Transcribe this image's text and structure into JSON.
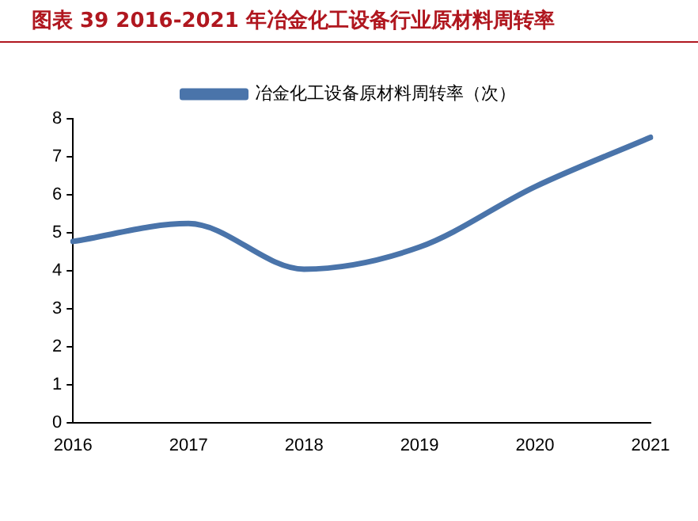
{
  "chart_data": {
    "type": "line",
    "title": "图表 39 2016-2021 年冶金化工设备行业原材料周转率",
    "categories": [
      "2016",
      "2017",
      "2018",
      "2019",
      "2020",
      "2021"
    ],
    "series": [
      {
        "name": "冶金化工设备原材料周转率（次）",
        "color": "#4a74aa",
        "values": [
          4.77,
          5.24,
          4.04,
          4.62,
          6.21,
          7.51
        ]
      }
    ],
    "ylim": [
      0,
      8
    ],
    "yticks": [
      0,
      1,
      2,
      3,
      4,
      5,
      6,
      7,
      8
    ],
    "grid": false,
    "legend": "top",
    "marker": "none",
    "line_style": "solid"
  }
}
